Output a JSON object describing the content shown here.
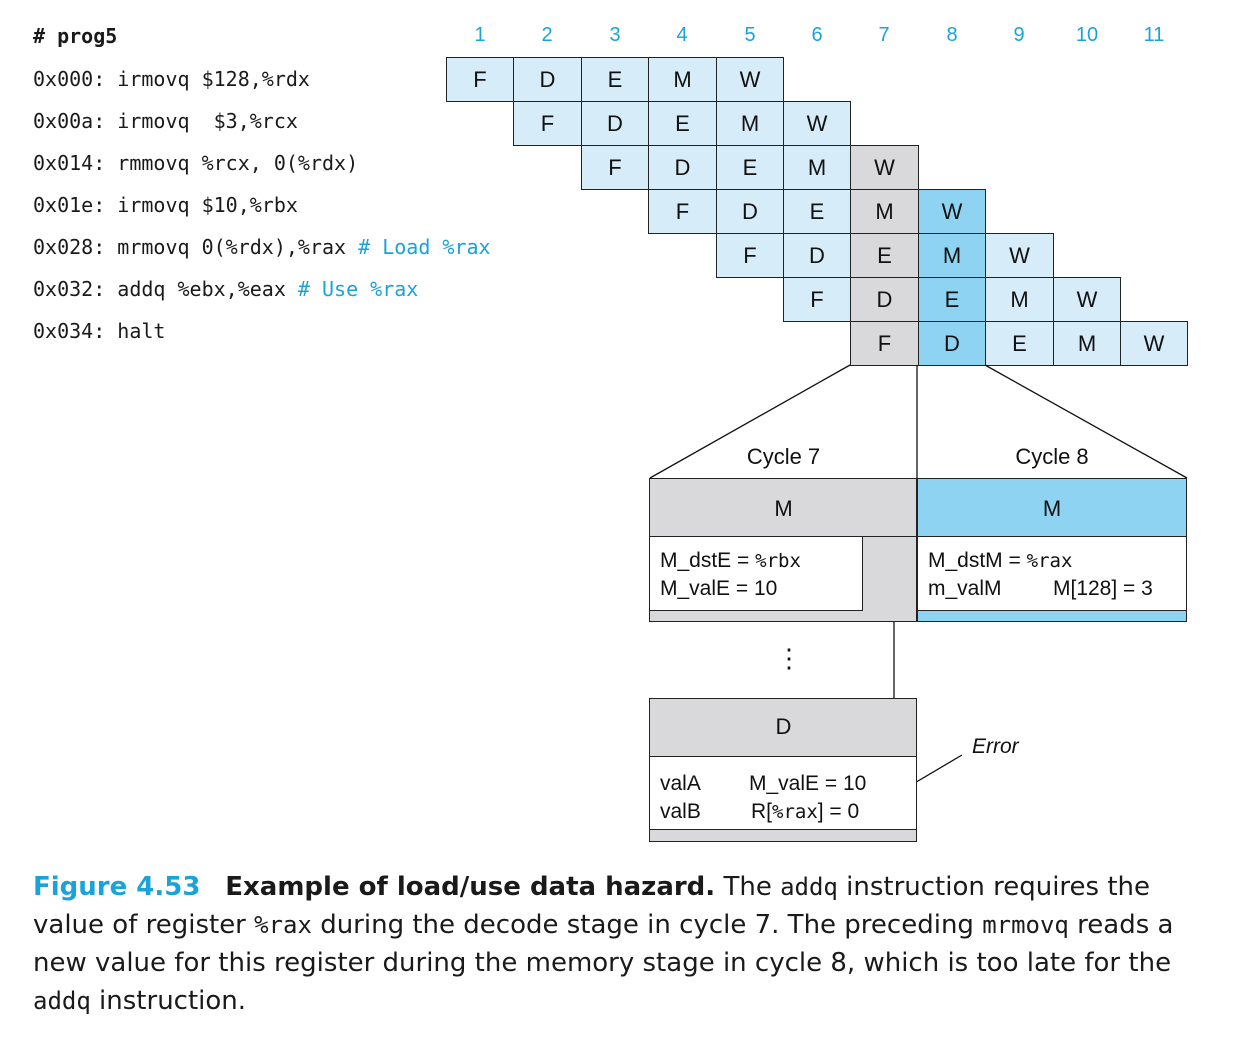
{
  "program": {
    "header": "# prog5",
    "lines": [
      {
        "addr": "0x000:",
        "instr": "irmovq $128,%rdx",
        "comment": ""
      },
      {
        "addr": "0x00a:",
        "instr": "irmovq  $3,%rcx",
        "comment": ""
      },
      {
        "addr": "0x014:",
        "instr": "rmmovq %rcx, 0(%rdx)",
        "comment": ""
      },
      {
        "addr": "0x01e:",
        "instr": "irmovq $10,%rbx",
        "comment": ""
      },
      {
        "addr": "0x028:",
        "instr": "mrmovq 0(%rdx),%rax",
        "comment": "# Load %rax"
      },
      {
        "addr": "0x032:",
        "instr": "addq %ebx,%eax",
        "comment": "# Use %rax"
      },
      {
        "addr": "0x034:",
        "instr": "halt",
        "comment": ""
      }
    ]
  },
  "pipeline": {
    "cycles": [
      "1",
      "2",
      "3",
      "4",
      "5",
      "6",
      "7",
      "8",
      "9",
      "10",
      "11"
    ],
    "rows": [
      {
        "start": 1,
        "stages": [
          "F",
          "D",
          "E",
          "M",
          "W"
        ]
      },
      {
        "start": 2,
        "stages": [
          "F",
          "D",
          "E",
          "M",
          "W"
        ]
      },
      {
        "start": 3,
        "stages": [
          "F",
          "D",
          "E",
          "M",
          "W"
        ]
      },
      {
        "start": 4,
        "stages": [
          "F",
          "D",
          "E",
          "M",
          "W"
        ]
      },
      {
        "start": 5,
        "stages": [
          "F",
          "D",
          "E",
          "M",
          "W"
        ]
      },
      {
        "start": 6,
        "stages": [
          "F",
          "D",
          "E",
          "M",
          "W"
        ]
      },
      {
        "start": 7,
        "stages": [
          "F",
          "D",
          "E",
          "M",
          "W"
        ]
      }
    ],
    "highlight_cycles": {
      "gray": 7,
      "blue": 8
    },
    "colors": {
      "light": "#d6ecf8",
      "gray": "#d9d9db",
      "blue": "#8fd3f2",
      "accent": "#1aa3d9"
    }
  },
  "detail": {
    "cycle7": {
      "title": "Cycle 7",
      "stage": "M",
      "line1": "M_dstE = ",
      "line1_reg": "%rbx",
      "line2": "M_valE = 10"
    },
    "cycle8": {
      "title": "Cycle 8",
      "stage": "M",
      "line1": "M_dstM = ",
      "line1_reg": "%rax",
      "line2": "m_valM",
      "line2_rhs": "M[128] = 3"
    },
    "ellipsis": "⋮",
    "decode": {
      "stage": "D",
      "line1_lhs": "valA",
      "line1_rhs": "M_valE = 10",
      "line2_lhs": "valB",
      "line2_rhs_a": "R[",
      "line2_reg": "%rax",
      "line2_rhs_b": "] = 0"
    },
    "error_label": "Error"
  },
  "caption": {
    "fig": "Figure 4.53",
    "title": "Example of load/use data hazard.",
    "t1": " The ",
    "c1": "addq",
    "t2": " instruction requires the value of register ",
    "c2": "%rax",
    "t3": " during the decode stage in cycle 7. The preceding ",
    "c3": "mrmovq",
    "t4": " reads a new value for this register during the memory stage in cycle 8, which is too late for the ",
    "c4": "addq",
    "t5": " instruction."
  }
}
